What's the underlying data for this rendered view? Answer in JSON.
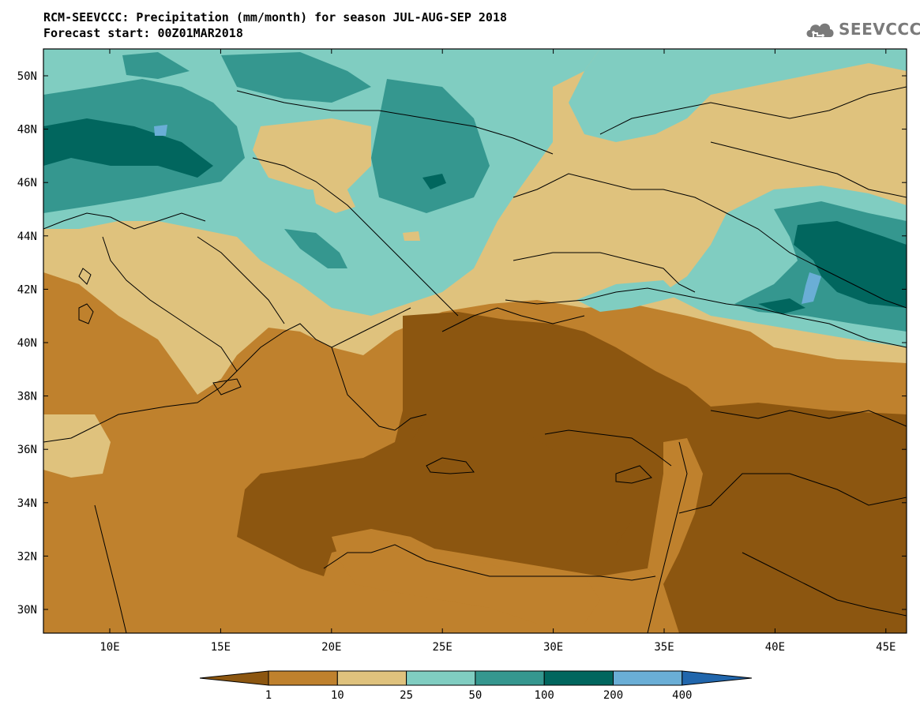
{
  "header": {
    "title_line1": "RCM-SEEVCCC: Precipitation (mm/month) for season JUL-AUG-SEP 2018",
    "title_line2": "Forecast start: 00Z01MAR2018"
  },
  "logo": {
    "text": "SEEVCCC",
    "icon": "cloud-icon"
  },
  "map": {
    "lat_labels": [
      "50N",
      "48N",
      "46N",
      "44N",
      "42N",
      "40N",
      "38N",
      "36N",
      "34N",
      "32N",
      "30N"
    ],
    "lon_labels": [
      "10E",
      "15E",
      "20E",
      "25E",
      "30E",
      "35E",
      "40E",
      "45E"
    ]
  },
  "colorbar": {
    "ticks": [
      "1",
      "10",
      "25",
      "50",
      "100",
      "200",
      "400"
    ],
    "colors": [
      "#8c5610",
      "#bf812d",
      "#dfc27d",
      "#80cdc1",
      "#35978f",
      "#01665e",
      "#6aaed6",
      "#2166ac"
    ]
  }
}
